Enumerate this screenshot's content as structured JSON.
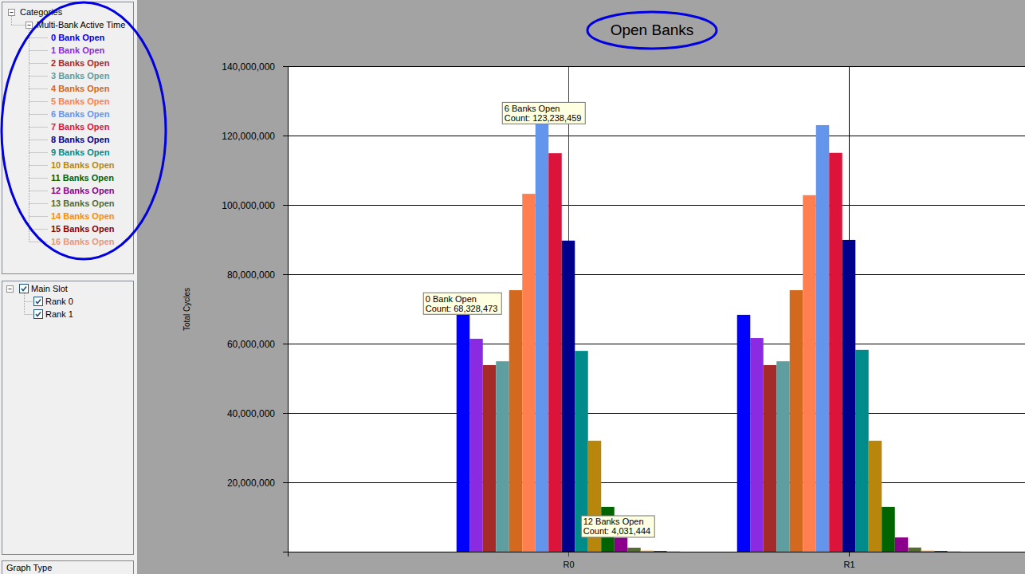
{
  "chart_data": {
    "type": "bar",
    "title": "Open Banks",
    "y_label": "Total Cycles",
    "categories": [
      "R0",
      "R1"
    ],
    "series": [
      {
        "name": "0 Bank Open",
        "color": "#0000ff",
        "values": [
          68328473,
          68300000
        ]
      },
      {
        "name": "1 Bank Open",
        "color": "#8a2be2",
        "values": [
          61400000,
          61600000
        ]
      },
      {
        "name": "2 Banks Open",
        "color": "#a52a2a",
        "values": [
          53800000,
          53800000
        ]
      },
      {
        "name": "3 Banks Open",
        "color": "#5f9ea0",
        "values": [
          54900000,
          54900000
        ]
      },
      {
        "name": "4 Banks Open",
        "color": "#d2691e",
        "values": [
          75400000,
          75400000
        ]
      },
      {
        "name": "5 Banks Open",
        "color": "#ff7f50",
        "values": [
          103200000,
          102800000
        ]
      },
      {
        "name": "6 Banks Open",
        "color": "#6495ed",
        "values": [
          123238459,
          123000000
        ]
      },
      {
        "name": "7 Banks Open",
        "color": "#dc143c",
        "values": [
          114900000,
          115000000
        ]
      },
      {
        "name": "8 Banks Open",
        "color": "#00008b",
        "values": [
          89700000,
          89900000
        ]
      },
      {
        "name": "9 Banks Open",
        "color": "#008b8b",
        "values": [
          57900000,
          58200000
        ]
      },
      {
        "name": "10 Banks Open",
        "color": "#b8860b",
        "values": [
          32000000,
          32000000
        ]
      },
      {
        "name": "11 Banks Open",
        "color": "#006400",
        "values": [
          12900000,
          12900000
        ]
      },
      {
        "name": "12 Banks Open",
        "color": "#8b008b",
        "values": [
          4031444,
          4100000
        ]
      },
      {
        "name": "13 Banks Open",
        "color": "#556b2f",
        "values": [
          1150000,
          1200000
        ]
      },
      {
        "name": "14 Banks Open",
        "color": "#ff8c00",
        "values": [
          300000,
          300000
        ]
      },
      {
        "name": "15 Banks Open",
        "color": "#8b0000",
        "values": [
          200000,
          200000
        ]
      },
      {
        "name": "16 Banks Open",
        "color": "#e9967a",
        "values": [
          100000,
          100000
        ]
      }
    ],
    "ylim": [
      0,
      140000000
    ],
    "yticks": [
      {
        "value": 20000000,
        "label": "20,000,000"
      },
      {
        "value": 40000000,
        "label": "40,000,000"
      },
      {
        "value": 60000000,
        "label": "60,000,000"
      },
      {
        "value": 80000000,
        "label": "80,000,000"
      },
      {
        "value": 100000000,
        "label": "100,000,000"
      },
      {
        "value": 120000000,
        "label": "120,000,000"
      },
      {
        "value": 140000000,
        "label": "140,000,000"
      }
    ],
    "grid": true,
    "legend": "left",
    "annotations": [
      {
        "series": "6 Banks Open",
        "category": "R0",
        "label": "Count: 123,238,459"
      },
      {
        "series": "0 Bank Open",
        "category": "R0",
        "label": "Count: 68,328,473"
      },
      {
        "series": "12 Banks Open",
        "category": "R0",
        "label": "Count: 4,031,444"
      }
    ]
  },
  "ui": {
    "tree_root": "Categories",
    "tree_group": "Multi-Bank Active Time",
    "slot_root": "Main Slot",
    "slots": [
      "Rank 0",
      "Rank 1"
    ],
    "graph_type": "Graph Type"
  }
}
